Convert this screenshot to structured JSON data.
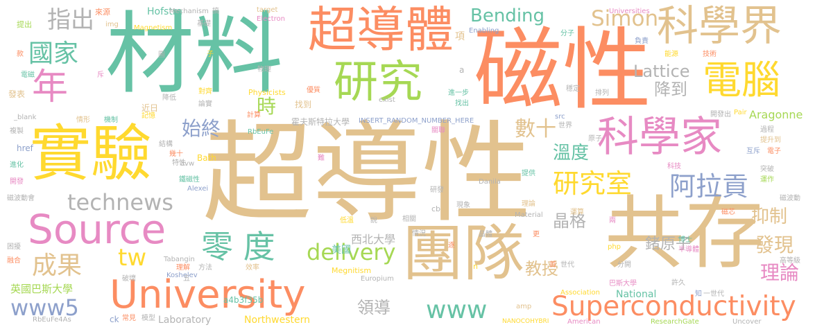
{
  "palette": {
    "tan": "#e2c28e",
    "teal": "#66c2a5",
    "orange": "#fc8d62",
    "pink": "#e78ac3",
    "lime": "#a6d854",
    "blue": "#8da0cb",
    "yellow": "#ffd92f",
    "gray": "#b3b3b3"
  },
  "words": [
    {
      "text": "超導性",
      "color": "tan"
    },
    {
      "text": "材料",
      "color": "teal"
    },
    {
      "text": "磁性",
      "color": "orange"
    },
    {
      "text": "共存",
      "color": "tan"
    },
    {
      "text": "實驗",
      "color": "yellow"
    },
    {
      "text": "團隊",
      "color": "tan"
    },
    {
      "text": "超導體",
      "color": "orange"
    },
    {
      "text": "研究",
      "color": "lime"
    },
    {
      "text": "科學界",
      "color": "tan"
    },
    {
      "text": "科學家",
      "color": "pink"
    },
    {
      "text": "電腦",
      "color": "yellow"
    },
    {
      "text": "Source",
      "color": "pink"
    },
    {
      "text": "University",
      "color": "orange"
    },
    {
      "text": "年",
      "color": "pink"
    },
    {
      "text": "國家",
      "color": "teal"
    },
    {
      "text": "指出",
      "color": "gray"
    },
    {
      "text": "零 度",
      "color": "teal"
    },
    {
      "text": "technews",
      "color": "gray"
    },
    {
      "text": "Superconductivity",
      "color": "orange"
    },
    {
      "text": "研究室",
      "color": "yellow"
    },
    {
      "text": "阿拉貢",
      "color": "blue"
    },
    {
      "text": "成果",
      "color": "tan"
    },
    {
      "text": "www5",
      "color": "blue"
    },
    {
      "text": "www",
      "color": "teal"
    },
    {
      "text": "delivery",
      "color": "lime"
    },
    {
      "text": "tw",
      "color": "yellow"
    },
    {
      "text": "Simon",
      "color": "tan"
    },
    {
      "text": "Bending",
      "color": "teal"
    },
    {
      "text": "Lattice",
      "color": "gray"
    },
    {
      "text": "始終",
      "color": "blue"
    },
    {
      "text": "時",
      "color": "lime"
    },
    {
      "text": "數十",
      "color": "tan"
    },
    {
      "text": "溫度",
      "color": "teal"
    },
    {
      "text": "降到",
      "color": "gray"
    },
    {
      "text": "晶格",
      "color": "gray"
    },
    {
      "text": "抑制",
      "color": "tan"
    },
    {
      "text": "發現",
      "color": "tan"
    },
    {
      "text": "理論",
      "color": "pink"
    },
    {
      "text": "鍺原子",
      "color": "gray"
    },
    {
      "text": "教授",
      "color": "tan"
    },
    {
      "text": "領導",
      "color": "gray"
    },
    {
      "text": "Aragonne",
      "color": "lime"
    },
    {
      "text": "西北大學",
      "color": "gray"
    },
    {
      "text": "美國",
      "color": "teal"
    },
    {
      "text": "英國巴斯大學",
      "color": "lime"
    },
    {
      "text": "Northwestern",
      "color": "yellow"
    },
    {
      "text": "Laboratory",
      "color": "gray"
    },
    {
      "text": "National",
      "color": "teal"
    },
    {
      "text": "Hofstra",
      "color": "teal"
    },
    {
      "text": "霍夫斯特拉大學",
      "color": "gray"
    },
    {
      "text": "INSERT_RANDOM_NUMBER_HERE",
      "color": "blue"
    },
    {
      "text": "RbEuFe",
      "color": "teal"
    },
    {
      "text": "RbEuFe4As",
      "color": "gray"
    },
    {
      "text": "Mechanism",
      "color": "gray"
    },
    {
      "text": "Magnetism",
      "color": "yellow"
    },
    {
      "text": "Electron",
      "color": "pink"
    },
    {
      "text": "target",
      "color": "tan"
    },
    {
      "text": "Universities",
      "color": "pink"
    },
    {
      "text": "Enabling",
      "color": "blue"
    },
    {
      "text": "Physicists",
      "color": "yellow"
    },
    {
      "text": "Bath",
      "color": "yellow"
    },
    {
      "text": "Alexei",
      "color": "blue"
    },
    {
      "text": "Tabangin",
      "color": "gray"
    },
    {
      "text": "Koshelev",
      "color": "blue"
    },
    {
      "text": "Megnitism",
      "color": "yellow"
    },
    {
      "text": "Europium",
      "color": "gray"
    },
    {
      "text": "a4b3f35b",
      "color": "teal"
    },
    {
      "text": "Association",
      "color": "yellow"
    },
    {
      "text": "American",
      "color": "pink"
    },
    {
      "text": "ResearchGate",
      "color": "lime"
    },
    {
      "text": "NANOCOHYBRI",
      "color": "yellow"
    },
    {
      "text": "Uncover",
      "color": "gray"
    },
    {
      "text": "Danila",
      "color": "gray"
    },
    {
      "text": "Pair",
      "color": "yellow"
    },
    {
      "text": "Material",
      "color": "gray"
    },
    {
      "text": "exist",
      "color": "gray"
    },
    {
      "text": "href",
      "color": "blue"
    },
    {
      "text": "_blank",
      "color": "gray"
    },
    {
      "text": "img",
      "color": "tan"
    },
    {
      "text": "src",
      "color": "blue"
    },
    {
      "text": "amp",
      "color": "tan"
    },
    {
      "text": "php",
      "color": "yellow"
    },
    {
      "text": "cb",
      "color": "gray"
    },
    {
      "text": "ck",
      "color": "blue"
    },
    {
      "text": "avw",
      "color": "gray"
    },
    {
      "text": "a",
      "color": "gray"
    },
    {
      "text": "n",
      "color": "yellow"
    },
    {
      "text": "提出",
      "color": "lime"
    },
    {
      "text": "來源",
      "color": "orange"
    },
    {
      "text": "基礎",
      "color": "gray"
    },
    {
      "text": "搞",
      "color": "gray"
    },
    {
      "text": "項",
      "color": "tan"
    },
    {
      "text": "分子",
      "color": "teal"
    },
    {
      "text": "負責",
      "color": "blue"
    },
    {
      "text": "能源",
      "color": "yellow"
    },
    {
      "text": "技術",
      "color": "orange"
    },
    {
      "text": "款",
      "color": "orange"
    },
    {
      "text": "子",
      "color": "yellow"
    },
    {
      "text": "圖",
      "color": "gray"
    },
    {
      "text": "電磁",
      "color": "teal"
    },
    {
      "text": "物理",
      "color": "gray"
    },
    {
      "text": "斥",
      "color": "pink"
    },
    {
      "text": "發表",
      "color": "tan"
    },
    {
      "text": "降低",
      "color": "gray"
    },
    {
      "text": "對齊",
      "color": "yellow"
    },
    {
      "text": "優質",
      "color": "orange"
    },
    {
      "text": "進一步",
      "color": "teal"
    },
    {
      "text": "找出",
      "color": "teal"
    },
    {
      "text": "穩定",
      "color": "gray"
    },
    {
      "text": "排列",
      "color": "gray"
    },
    {
      "text": "情形",
      "color": "tan"
    },
    {
      "text": "機制",
      "color": "teal"
    },
    {
      "text": "論實",
      "color": "gray"
    },
    {
      "text": "近日",
      "color": "tan"
    },
    {
      "text": "記憶",
      "color": "yellow"
    },
    {
      "text": "計算",
      "color": "orange"
    },
    {
      "text": "找到",
      "color": "tan"
    },
    {
      "text": "開發出",
      "color": "gray"
    },
    {
      "text": "世界",
      "color": "gray"
    },
    {
      "text": "過程",
      "color": "gray"
    },
    {
      "text": "提升到",
      "color": "tan"
    },
    {
      "text": "互斥",
      "color": "blue"
    },
    {
      "text": "電子",
      "color": "orange"
    },
    {
      "text": "複製",
      "color": "gray"
    },
    {
      "text": "進化",
      "color": "teal"
    },
    {
      "text": "結構",
      "color": "gray"
    },
    {
      "text": "幾十",
      "color": "orange"
    },
    {
      "text": "特性",
      "color": "gray"
    },
    {
      "text": "關聯",
      "color": "pink"
    },
    {
      "text": "原子",
      "color": "gray"
    },
    {
      "text": "科技",
      "color": "pink"
    },
    {
      "text": "突破",
      "color": "gray"
    },
    {
      "text": "運作",
      "color": "lime"
    },
    {
      "text": "開發",
      "color": "pink"
    },
    {
      "text": "鐵磁性",
      "color": "teal"
    },
    {
      "text": "難",
      "color": "pink"
    },
    {
      "text": "提供",
      "color": "teal"
    },
    {
      "text": "磁波動會",
      "color": "gray"
    },
    {
      "text": "研發",
      "color": "gray"
    },
    {
      "text": "現象",
      "color": "gray"
    },
    {
      "text": "理論",
      "color": "tan"
    },
    {
      "text": "運算",
      "color": "tan"
    },
    {
      "text": "磁芯",
      "color": "orange"
    },
    {
      "text": "磁波動",
      "color": "gray"
    },
    {
      "text": "低溫",
      "color": "yellow"
    },
    {
      "text": "說",
      "color": "gray"
    },
    {
      "text": "相關",
      "color": "gray"
    },
    {
      "text": "情況",
      "color": "gray"
    },
    {
      "text": "晶體",
      "color": "gray"
    },
    {
      "text": "更",
      "color": "orange"
    },
    {
      "text": "兩",
      "color": "pink"
    },
    {
      "text": "困擾",
      "color": "gray"
    },
    {
      "text": "融合",
      "color": "orange"
    },
    {
      "text": "逐",
      "color": "orange"
    },
    {
      "text": "博士",
      "color": "teal"
    },
    {
      "text": "半導體",
      "color": "pink"
    },
    {
      "text": "首",
      "color": "orange"
    },
    {
      "text": "世代",
      "color": "gray"
    },
    {
      "text": "分開",
      "color": "gray"
    },
    {
      "text": "高等級",
      "color": "gray"
    },
    {
      "text": "理解",
      "color": "orange"
    },
    {
      "text": "方法",
      "color": "gray"
    },
    {
      "text": "效率",
      "color": "tan"
    },
    {
      "text": "巴斯大學",
      "color": "pink"
    },
    {
      "text": "許久",
      "color": "gray"
    },
    {
      "text": "破壞",
      "color": "gray"
    },
    {
      "text": "五",
      "color": "gray"
    },
    {
      "text": "一世代",
      "color": "gray"
    },
    {
      "text": "知",
      "color": "blue"
    },
    {
      "text": "模型",
      "color": "gray"
    },
    {
      "text": "常見",
      "color": "orange"
    }
  ]
}
